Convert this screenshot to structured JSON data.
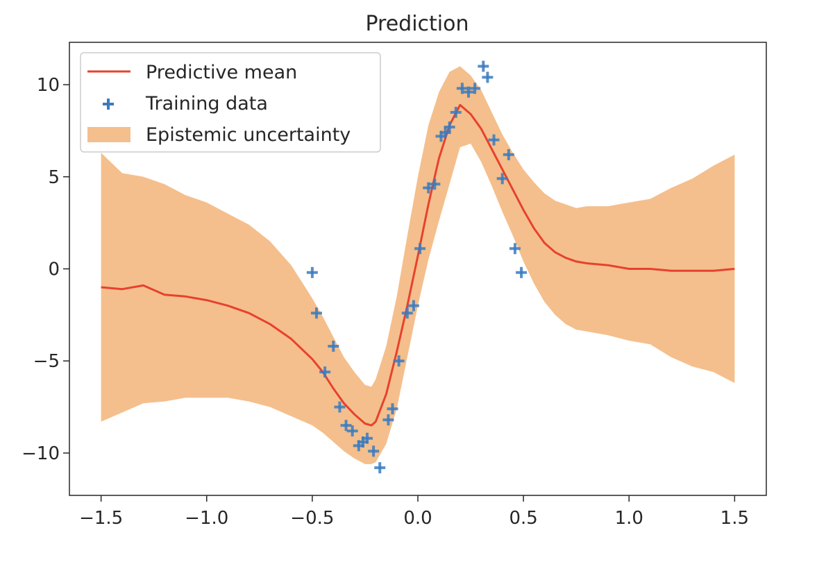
{
  "chart_data": {
    "type": "line",
    "title": "Prediction",
    "xlabel": "",
    "ylabel": "",
    "xlim": [
      -1.65,
      1.65
    ],
    "ylim": [
      -12.3,
      12.3
    ],
    "xticks": [
      -1.5,
      -1.0,
      -0.5,
      0.0,
      0.5,
      1.0,
      1.5
    ],
    "xtick_labels": [
      "−1.5",
      "−1.0",
      "−0.5",
      "0.0",
      "0.5",
      "1.0",
      "1.5"
    ],
    "yticks": [
      10,
      5,
      0,
      -5,
      -10
    ],
    "ytick_labels": [
      "10",
      "5",
      "0",
      "−5",
      "−10"
    ],
    "grid": false,
    "legend_position": "top-left",
    "colors": {
      "mean": "#e8412e",
      "training": "#3a7bbf",
      "band": "#f4bf8c"
    },
    "series": [
      {
        "name": "Predictive mean",
        "kind": "line",
        "x": [
          -1.5,
          -1.4,
          -1.3,
          -1.2,
          -1.1,
          -1.0,
          -0.9,
          -0.8,
          -0.7,
          -0.6,
          -0.5,
          -0.45,
          -0.4,
          -0.35,
          -0.3,
          -0.25,
          -0.22,
          -0.2,
          -0.15,
          -0.1,
          -0.05,
          0.0,
          0.05,
          0.1,
          0.15,
          0.2,
          0.25,
          0.3,
          0.35,
          0.4,
          0.45,
          0.5,
          0.55,
          0.6,
          0.65,
          0.7,
          0.75,
          0.8,
          0.9,
          1.0,
          1.1,
          1.2,
          1.3,
          1.4,
          1.5
        ],
        "y": [
          -1.0,
          -1.1,
          -0.9,
          -1.4,
          -1.5,
          -1.7,
          -2.0,
          -2.4,
          -3.0,
          -3.8,
          -4.9,
          -5.6,
          -6.5,
          -7.3,
          -7.9,
          -8.4,
          -8.5,
          -8.3,
          -6.8,
          -4.5,
          -2.0,
          0.7,
          3.5,
          6.0,
          7.8,
          8.9,
          8.4,
          7.6,
          6.5,
          5.4,
          4.3,
          3.2,
          2.2,
          1.4,
          0.9,
          0.6,
          0.4,
          0.3,
          0.2,
          0.0,
          0.0,
          -0.1,
          -0.1,
          -0.1,
          0.0
        ]
      },
      {
        "name": "Training data",
        "kind": "scatter",
        "x": [
          -0.5,
          -0.48,
          -0.44,
          -0.4,
          -0.37,
          -0.34,
          -0.31,
          -0.28,
          -0.26,
          -0.24,
          -0.21,
          -0.18,
          -0.14,
          -0.12,
          -0.09,
          -0.05,
          -0.02,
          0.01,
          0.05,
          0.08,
          0.11,
          0.13,
          0.15,
          0.18,
          0.21,
          0.24,
          0.27,
          0.31,
          0.33,
          0.36,
          0.4,
          0.43,
          0.46,
          0.49
        ],
        "y": [
          -0.2,
          -2.4,
          -5.6,
          -4.2,
          -7.5,
          -8.5,
          -8.8,
          -9.6,
          -9.4,
          -9.2,
          -9.9,
          -10.8,
          -8.2,
          -7.6,
          -5.0,
          -2.4,
          -2.0,
          1.1,
          4.4,
          4.6,
          7.2,
          7.4,
          7.7,
          8.5,
          9.8,
          9.6,
          9.8,
          11.0,
          10.4,
          7.0,
          4.9,
          6.2,
          1.1,
          -0.2
        ]
      },
      {
        "name": "Epistemic uncertainty",
        "kind": "band",
        "x": [
          -1.5,
          -1.4,
          -1.3,
          -1.2,
          -1.1,
          -1.0,
          -0.9,
          -0.8,
          -0.7,
          -0.6,
          -0.5,
          -0.45,
          -0.4,
          -0.35,
          -0.3,
          -0.25,
          -0.22,
          -0.2,
          -0.15,
          -0.1,
          -0.05,
          0.0,
          0.05,
          0.1,
          0.15,
          0.2,
          0.25,
          0.3,
          0.35,
          0.4,
          0.45,
          0.5,
          0.55,
          0.6,
          0.65,
          0.7,
          0.75,
          0.8,
          0.9,
          1.0,
          1.1,
          1.2,
          1.3,
          1.4,
          1.5
        ],
        "upper": [
          6.3,
          5.2,
          5.0,
          4.6,
          4.0,
          3.6,
          3.0,
          2.4,
          1.5,
          0.2,
          -1.6,
          -2.6,
          -3.7,
          -4.8,
          -5.6,
          -6.3,
          -6.4,
          -6.0,
          -4.2,
          -1.5,
          1.8,
          5.0,
          7.8,
          9.6,
          10.7,
          11.0,
          10.5,
          9.7,
          8.5,
          7.3,
          6.3,
          5.4,
          4.7,
          4.1,
          3.7,
          3.5,
          3.3,
          3.4,
          3.4,
          3.6,
          3.8,
          4.4,
          4.9,
          5.6,
          6.2
        ],
        "lower": [
          -8.3,
          -7.8,
          -7.3,
          -7.2,
          -7.0,
          -7.0,
          -7.0,
          -7.2,
          -7.5,
          -8.0,
          -8.5,
          -8.9,
          -9.4,
          -9.9,
          -10.3,
          -10.6,
          -10.6,
          -10.5,
          -9.5,
          -7.6,
          -4.8,
          -2.0,
          0.5,
          2.6,
          4.6,
          6.6,
          6.8,
          5.8,
          4.5,
          3.1,
          1.8,
          0.4,
          -0.8,
          -1.8,
          -2.5,
          -3.0,
          -3.3,
          -3.4,
          -3.6,
          -3.9,
          -4.1,
          -4.8,
          -5.3,
          -5.6,
          -6.2
        ]
      }
    ]
  }
}
